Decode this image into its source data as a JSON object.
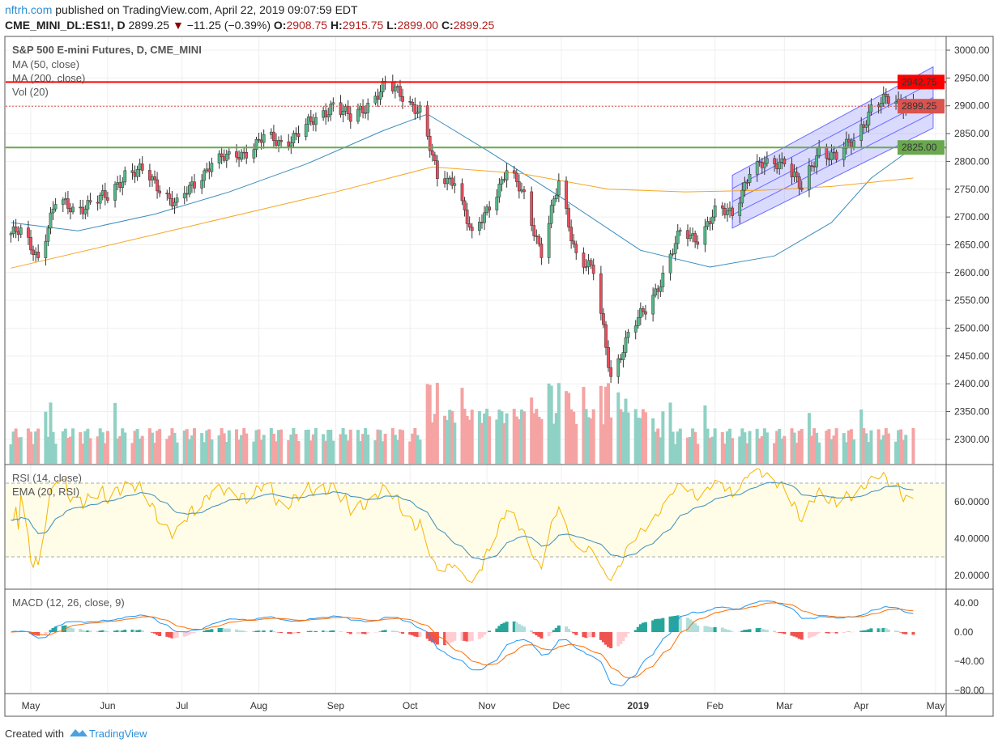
{
  "header": {
    "publisher": "nftrh.com",
    "published_text": "published on TradingView.com, April 22, 2019 09:07:59 EDT",
    "symbol": "CME_MINI_DL:ES1!, D",
    "last": "2899.25",
    "change": "−11.25 (−0.39%)",
    "change_icon": "triangle-down-icon",
    "o_label": "O:",
    "o": "2908.75",
    "h_label": "H:",
    "h": "2915.75",
    "l_label": "L:",
    "l": "2899.00",
    "c_label": "C:",
    "c": "2899.25"
  },
  "legend": {
    "title": "S&P 500 E-mini Futures, D, CME_MINI",
    "ma50": "MA (50, close)",
    "ma200": "MA (200, close)",
    "vol": "Vol (20)",
    "rsi": "RSI (14, close)",
    "rsi_ema": "EMA (20, RSI)",
    "macd": "MACD (12, 26, close, 9)"
  },
  "footer": {
    "created_with": "Created with",
    "brand": "TradingView"
  },
  "colors": {
    "up": "#53b987",
    "down": "#eb4d5c",
    "ma50": "#3c8dbc",
    "ma200": "#f5a623",
    "resistance": "#ff0000",
    "support": "#6aa84f",
    "channel": "#6a6aff",
    "rsi_band": "#fffde7"
  },
  "chart_data": {
    "type": "candlestick",
    "price_axis": {
      "ylim": [
        2260,
        3020
      ],
      "ticks": [
        "3000.00",
        "2950.00",
        "2900.00",
        "2850.00",
        "2800.00",
        "2750.00",
        "2700.00",
        "2650.00",
        "2600.00",
        "2550.00",
        "2500.00",
        "2450.00",
        "2400.00",
        "2350.00",
        "2300.00"
      ]
    },
    "time_axis": {
      "labels": [
        {
          "date": "2018-05-01",
          "label": "May"
        },
        {
          "date": "2018-06-01",
          "label": "Jun"
        },
        {
          "date": "2018-07-01",
          "label": "Jul"
        },
        {
          "date": "2018-08-01",
          "label": "Aug"
        },
        {
          "date": "2018-09-01",
          "label": "Sep"
        },
        {
          "date": "2018-10-01",
          "label": "Oct"
        },
        {
          "date": "2018-11-01",
          "label": "Nov"
        },
        {
          "date": "2018-12-01",
          "label": "Dec"
        },
        {
          "date": "2019-01-01",
          "label": "2019"
        },
        {
          "date": "2019-02-01",
          "label": "Feb"
        },
        {
          "date": "2019-03-01",
          "label": "Mar"
        },
        {
          "date": "2019-04-01",
          "label": "Apr"
        },
        {
          "date": "2019-05-01",
          "label": "May"
        }
      ]
    },
    "weekly_closes": [
      [
        "2018-04-23",
        2670
      ],
      [
        "2018-04-27",
        2670
      ],
      [
        "2018-05-04",
        2630
      ],
      [
        "2018-05-11",
        2725
      ],
      [
        "2018-05-18",
        2715
      ],
      [
        "2018-05-25",
        2725
      ],
      [
        "2018-06-01",
        2735
      ],
      [
        "2018-06-08",
        2780
      ],
      [
        "2018-06-15",
        2780
      ],
      [
        "2018-06-22",
        2755
      ],
      [
        "2018-06-29",
        2720
      ],
      [
        "2018-07-06",
        2760
      ],
      [
        "2018-07-13",
        2800
      ],
      [
        "2018-07-20",
        2805
      ],
      [
        "2018-07-27",
        2820
      ],
      [
        "2018-08-03",
        2840
      ],
      [
        "2018-08-10",
        2835
      ],
      [
        "2018-08-17",
        2850
      ],
      [
        "2018-08-24",
        2875
      ],
      [
        "2018-08-31",
        2905
      ],
      [
        "2018-09-07",
        2875
      ],
      [
        "2018-09-14",
        2905
      ],
      [
        "2018-09-21",
        2935
      ],
      [
        "2018-09-28",
        2920
      ],
      [
        "2018-10-05",
        2890
      ],
      [
        "2018-10-12",
        2770
      ],
      [
        "2018-10-19",
        2770
      ],
      [
        "2018-10-26",
        2660
      ],
      [
        "2018-11-02",
        2725
      ],
      [
        "2018-11-09",
        2780
      ],
      [
        "2018-11-16",
        2740
      ],
      [
        "2018-11-23",
        2635
      ],
      [
        "2018-11-30",
        2760
      ],
      [
        "2018-12-07",
        2635
      ],
      [
        "2018-12-14",
        2600
      ],
      [
        "2018-12-21",
        2415
      ],
      [
        "2018-12-28",
        2485
      ],
      [
        "2019-01-04",
        2535
      ],
      [
        "2019-01-11",
        2595
      ],
      [
        "2019-01-18",
        2670
      ],
      [
        "2019-01-25",
        2665
      ],
      [
        "2019-02-01",
        2705
      ],
      [
        "2019-02-08",
        2710
      ],
      [
        "2019-02-15",
        2780
      ],
      [
        "2019-02-22",
        2795
      ],
      [
        "2019-03-01",
        2805
      ],
      [
        "2019-03-08",
        2745
      ],
      [
        "2019-03-15",
        2825
      ],
      [
        "2019-03-22",
        2805
      ],
      [
        "2019-03-29",
        2840
      ],
      [
        "2019-04-05",
        2895
      ],
      [
        "2019-04-12",
        2910
      ],
      [
        "2019-04-19",
        2905
      ],
      [
        "2019-04-22",
        2899.25
      ]
    ],
    "ma50": [
      [
        "2018-04-23",
        2690
      ],
      [
        "2018-05-20",
        2675
      ],
      [
        "2018-06-20",
        2705
      ],
      [
        "2018-07-20",
        2745
      ],
      [
        "2018-08-20",
        2795
      ],
      [
        "2018-09-20",
        2855
      ],
      [
        "2018-10-08",
        2885
      ],
      [
        "2018-11-01",
        2820
      ],
      [
        "2018-12-01",
        2735
      ],
      [
        "2019-01-02",
        2640
      ],
      [
        "2019-01-30",
        2610
      ],
      [
        "2019-02-25",
        2630
      ],
      [
        "2019-03-20",
        2690
      ],
      [
        "2019-04-05",
        2770
      ],
      [
        "2019-04-22",
        2825
      ]
    ],
    "ma200": [
      [
        "2018-04-23",
        2608
      ],
      [
        "2018-07-01",
        2680
      ],
      [
        "2018-09-01",
        2745
      ],
      [
        "2018-10-10",
        2790
      ],
      [
        "2018-11-15",
        2778
      ],
      [
        "2018-12-20",
        2750
      ],
      [
        "2019-01-20",
        2745
      ],
      [
        "2019-02-20",
        2748
      ],
      [
        "2019-03-20",
        2755
      ],
      [
        "2019-04-22",
        2770
      ]
    ],
    "horizontal_lines": [
      {
        "price": 2942.75,
        "label": "2942.75",
        "color": "#ff0000"
      },
      {
        "price": 2825.0,
        "label": "2825.00",
        "color": "#6aa84f"
      },
      {
        "price": 2899.25,
        "label": "2899.25",
        "color": "#d9534f",
        "style": "dotted"
      }
    ],
    "channel": {
      "start": "2019-02-08",
      "end": "2019-04-30",
      "start_top": 2775,
      "start_bottom": 2680,
      "end_top": 2970,
      "end_bottom": 2860
    },
    "rsi_axis": {
      "ticks": [
        "60.0000",
        "40.0000",
        "20.0000"
      ],
      "band": [
        30,
        70
      ]
    },
    "macd_axis": {
      "ticks": [
        "40.00",
        "0.00",
        "−40.00",
        "−80.00"
      ]
    }
  }
}
